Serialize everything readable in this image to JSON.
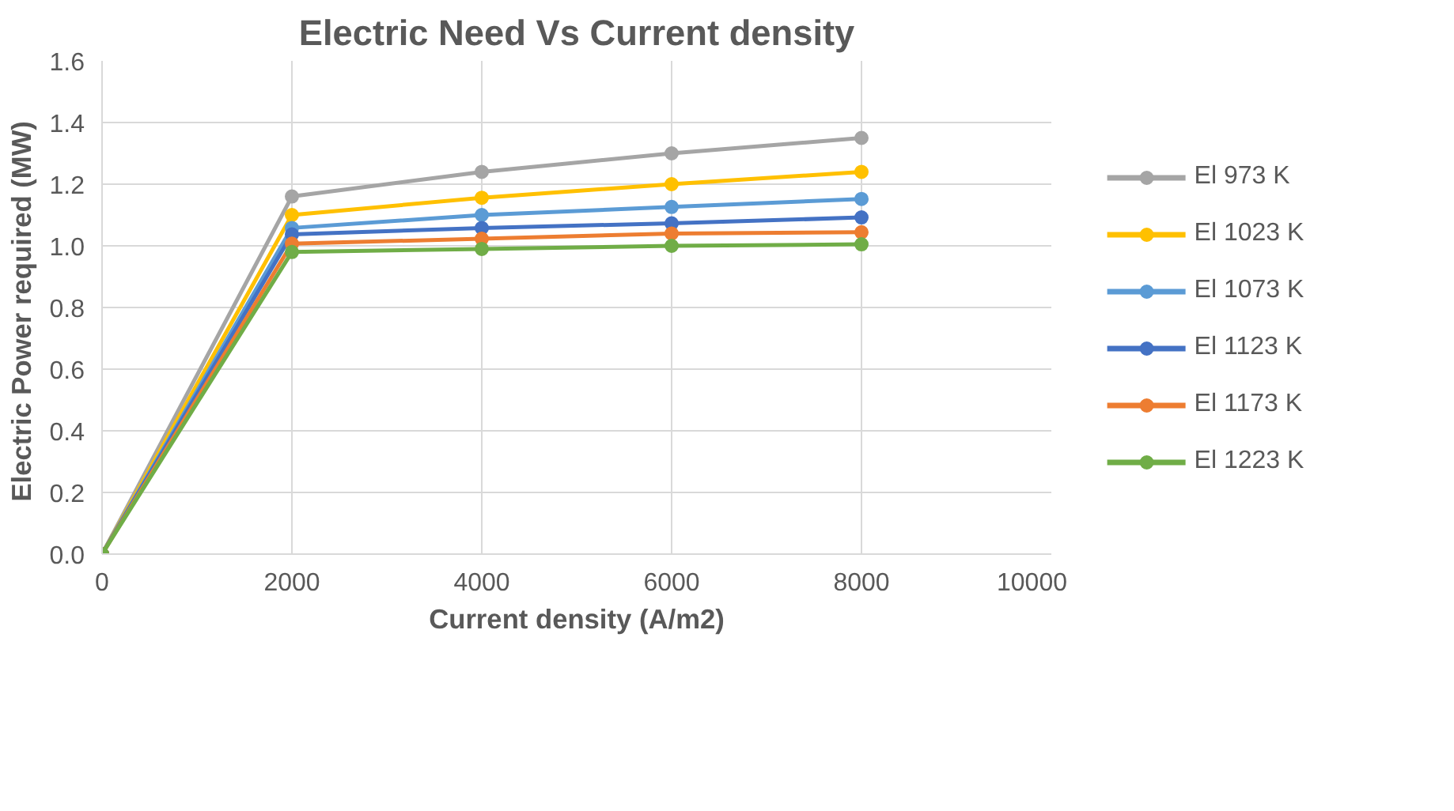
{
  "chart_data": {
    "type": "line",
    "title": "Electric Need Vs Current density",
    "xlabel": "Current density (A/m2)",
    "ylabel": "Electric Power  required (MW)",
    "x": [
      0,
      2000,
      4000,
      6000,
      8000
    ],
    "xlim": [
      0,
      10000
    ],
    "xticks": [
      0,
      2000,
      4000,
      6000,
      8000,
      10000
    ],
    "ylim": [
      0,
      1.6
    ],
    "yticks": [
      {
        "value": 0,
        "label": "0.0"
      },
      {
        "value": 0.2,
        "label": "0.2"
      },
      {
        "value": 0.4,
        "label": "0.4"
      },
      {
        "value": 0.6,
        "label": "0.6"
      },
      {
        "value": 0.8,
        "label": "0.8"
      },
      {
        "value": 1.0,
        "label": "1.0"
      },
      {
        "value": 1.2,
        "label": "1.2"
      },
      {
        "value": 1.4,
        "label": "1.4"
      },
      {
        "value": 1.6,
        "label": "1.6"
      }
    ],
    "grid": true,
    "legend": "right",
    "marker": "circle",
    "line_style": "solid",
    "series": [
      {
        "name": "El 973 K",
        "color": "#a5a5a5",
        "values": [
          0,
          1.16,
          1.24,
          1.3,
          1.35
        ]
      },
      {
        "name": "El 1023 K",
        "color": "#ffc000",
        "values": [
          0,
          1.1,
          1.156,
          1.2,
          1.24
        ]
      },
      {
        "name": "El 1073 K",
        "color": "#5b9bd5",
        "values": [
          0,
          1.058,
          1.1,
          1.126,
          1.152
        ]
      },
      {
        "name": "El 1123 K",
        "color": "#4472c4",
        "values": [
          0,
          1.037,
          1.058,
          1.073,
          1.092
        ]
      },
      {
        "name": "El 1173 K",
        "color": "#ed7d31",
        "values": [
          0,
          1.007,
          1.023,
          1.04,
          1.044
        ]
      },
      {
        "name": "El 1223 K",
        "color": "#70ad47",
        "values": [
          0,
          0.98,
          0.99,
          1.0,
          1.005
        ]
      }
    ]
  }
}
